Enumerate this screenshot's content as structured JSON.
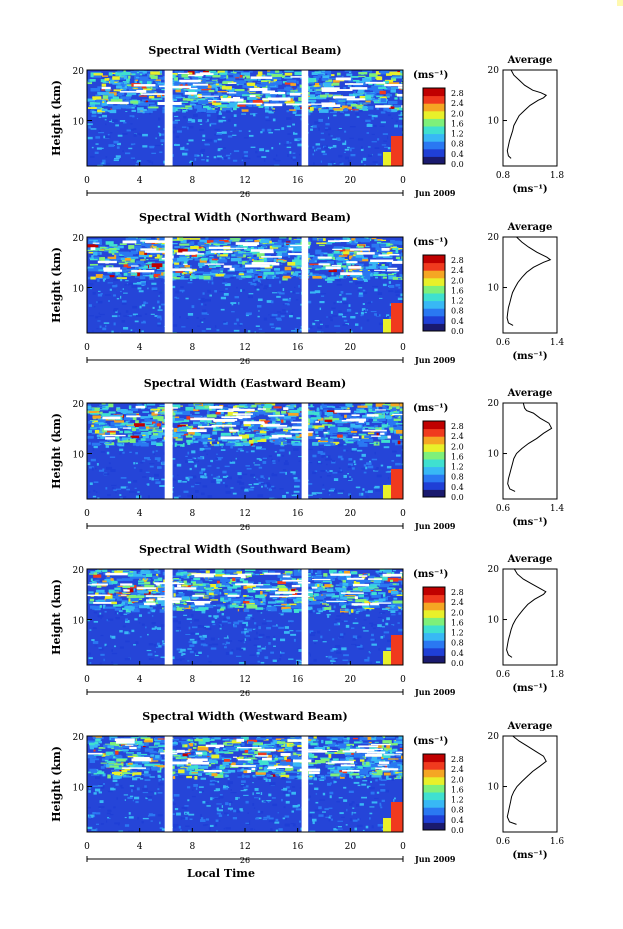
{
  "chart_data": [
    {
      "type": "heatmap",
      "title": "Spectral Width (Vertical Beam)",
      "ylabel": "Height (km)",
      "y_ticks": [
        "20",
        "10"
      ],
      "x_ticks": [
        "0",
        "4",
        "8",
        "12",
        "16",
        "20",
        "0"
      ],
      "xlim": [
        0,
        24
      ],
      "ylim": [
        1,
        20
      ],
      "date_marker": "26",
      "date_label": "Jun 2009",
      "colorbar": {
        "unit": "(ms⁻¹)",
        "ticks": [
          "2.8",
          "2.4",
          "2.0",
          "1.6",
          "1.2",
          "0.8",
          "0.4",
          "0.0"
        ],
        "range": [
          0,
          3.0
        ],
        "colors": [
          "#1a1a6e",
          "#1f3fd6",
          "#2a78f2",
          "#38b8f5",
          "#3fe0d0",
          "#7ef07a",
          "#e8f02a",
          "#f5a623",
          "#f03a1e",
          "#c00000"
        ]
      },
      "data_gaps_hours": [
        [
          5.9,
          6.5
        ],
        [
          16.3,
          16.8
        ]
      ],
      "average_profile": {
        "title": "Average",
        "xticks": [
          "0.8",
          "1.8"
        ],
        "xlim": [
          0.8,
          1.8
        ],
        "xlabel": "(ms⁻¹)",
        "yticks": [
          "20",
          "10"
        ],
        "height_km": [
          2.5,
          3,
          4,
          5,
          6,
          7,
          8,
          9,
          10,
          11,
          12,
          13,
          14,
          14.5,
          15,
          15.5,
          16,
          17,
          18,
          19,
          20
        ],
        "width_ms": [
          0.95,
          0.9,
          0.88,
          0.9,
          0.92,
          0.95,
          0.98,
          1.0,
          1.05,
          1.1,
          1.2,
          1.3,
          1.45,
          1.55,
          1.6,
          1.5,
          1.35,
          1.2,
          1.1,
          1.0,
          0.95
        ]
      }
    },
    {
      "type": "heatmap",
      "title": "Spectral Width (Northward Beam)",
      "ylabel": "Height (km)",
      "y_ticks": [
        "20",
        "10"
      ],
      "x_ticks": [
        "0",
        "4",
        "8",
        "12",
        "16",
        "20",
        "0"
      ],
      "xlim": [
        0,
        24
      ],
      "ylim": [
        1,
        20
      ],
      "date_marker": "26",
      "date_label": "Jun 2009",
      "colorbar": {
        "unit": "(ms⁻¹)",
        "ticks": [
          "2.8",
          "2.4",
          "2.0",
          "1.6",
          "1.2",
          "0.8",
          "0.4",
          "0.0"
        ],
        "range": [
          0,
          3.0
        ],
        "colors": [
          "#1a1a6e",
          "#1f3fd6",
          "#2a78f2",
          "#38b8f5",
          "#3fe0d0",
          "#7ef07a",
          "#e8f02a",
          "#f5a623",
          "#f03a1e",
          "#c00000"
        ]
      },
      "data_gaps_hours": [
        [
          5.9,
          6.5
        ],
        [
          16.3,
          16.8
        ]
      ],
      "average_profile": {
        "title": "Average",
        "xticks": [
          "0.6",
          "1.4"
        ],
        "xlim": [
          0.6,
          1.4
        ],
        "xlabel": "(ms⁻¹)",
        "yticks": [
          "20",
          "10"
        ],
        "height_km": [
          2.5,
          3,
          4,
          5,
          6,
          7,
          8,
          9,
          10,
          11,
          12,
          13,
          14,
          15,
          15.5,
          16,
          17,
          18,
          19,
          20
        ],
        "width_ms": [
          0.75,
          0.68,
          0.66,
          0.67,
          0.68,
          0.7,
          0.72,
          0.74,
          0.78,
          0.82,
          0.88,
          0.95,
          1.05,
          1.2,
          1.3,
          1.25,
          1.1,
          0.98,
          0.88,
          0.8
        ]
      }
    },
    {
      "type": "heatmap",
      "title": "Spectral Width (Eastward Beam)",
      "ylabel": "Height (km)",
      "y_ticks": [
        "20",
        "10"
      ],
      "x_ticks": [
        "0",
        "4",
        "8",
        "12",
        "16",
        "20",
        "0"
      ],
      "xlim": [
        0,
        24
      ],
      "ylim": [
        1,
        20
      ],
      "date_marker": "26",
      "date_label": "Jun 2009",
      "colorbar": {
        "unit": "(ms⁻¹)",
        "ticks": [
          "2.8",
          "2.4",
          "2.0",
          "1.6",
          "1.2",
          "0.8",
          "0.4",
          "0.0"
        ],
        "range": [
          0,
          3.0
        ],
        "colors": [
          "#1a1a6e",
          "#1f3fd6",
          "#2a78f2",
          "#38b8f5",
          "#3fe0d0",
          "#7ef07a",
          "#e8f02a",
          "#f5a623",
          "#f03a1e",
          "#c00000"
        ]
      },
      "data_gaps_hours": [
        [
          5.9,
          6.5
        ],
        [
          16.3,
          16.8
        ]
      ],
      "average_profile": {
        "title": "Average",
        "xticks": [
          "0.6",
          "1.4"
        ],
        "xlim": [
          0.6,
          1.4
        ],
        "xlabel": "(ms⁻¹)",
        "yticks": [
          "20",
          "10"
        ],
        "height_km": [
          2.5,
          3,
          4,
          5,
          6,
          7,
          8,
          9,
          10,
          11,
          12,
          13,
          14,
          15,
          16,
          17,
          18,
          18.5,
          19,
          20
        ],
        "width_ms": [
          0.78,
          0.7,
          0.67,
          0.68,
          0.7,
          0.72,
          0.74,
          0.76,
          0.8,
          0.88,
          0.98,
          1.1,
          1.2,
          1.32,
          1.28,
          1.15,
          1.05,
          0.95,
          0.92,
          0.9
        ]
      }
    },
    {
      "type": "heatmap",
      "title": "Spectral Width (Southward Beam)",
      "ylabel": "Height (km)",
      "y_ticks": [
        "20",
        "10"
      ],
      "x_ticks": [
        "0",
        "4",
        "8",
        "12",
        "16",
        "20",
        "0"
      ],
      "xlim": [
        0,
        24
      ],
      "ylim": [
        1,
        20
      ],
      "date_marker": "26",
      "date_label": "Jun 2009",
      "colorbar": {
        "unit": "(ms⁻¹)",
        "ticks": [
          "2.8",
          "2.4",
          "2.0",
          "1.6",
          "1.2",
          "0.8",
          "0.4",
          "0.0"
        ],
        "range": [
          0,
          3.0
        ],
        "colors": [
          "#1a1a6e",
          "#1f3fd6",
          "#2a78f2",
          "#38b8f5",
          "#3fe0d0",
          "#7ef07a",
          "#e8f02a",
          "#f5a623",
          "#f03a1e",
          "#c00000"
        ]
      },
      "data_gaps_hours": [
        [
          5.9,
          6.5
        ],
        [
          16.3,
          16.8
        ]
      ],
      "average_profile": {
        "title": "Average",
        "xticks": [
          "0.6",
          "1.8"
        ],
        "xlim": [
          0.6,
          1.8
        ],
        "xlabel": "(ms⁻¹)",
        "yticks": [
          "20",
          "10"
        ],
        "height_km": [
          2.5,
          3,
          4,
          5,
          6,
          7,
          8,
          9,
          10,
          11,
          12,
          13,
          14,
          15,
          15.5,
          16,
          17,
          18,
          19,
          20
        ],
        "width_ms": [
          0.8,
          0.72,
          0.68,
          0.7,
          0.72,
          0.75,
          0.78,
          0.82,
          0.88,
          0.96,
          1.05,
          1.15,
          1.3,
          1.5,
          1.55,
          1.45,
          1.25,
          1.05,
          0.92,
          0.85
        ]
      }
    },
    {
      "type": "heatmap",
      "title": "Spectral Width (Westward Beam)",
      "ylabel": "Height (km)",
      "y_ticks": [
        "20",
        "10"
      ],
      "x_ticks": [
        "0",
        "4",
        "8",
        "12",
        "16",
        "20",
        "0"
      ],
      "xlim": [
        0,
        24
      ],
      "ylim": [
        1,
        20
      ],
      "date_marker": "26",
      "date_label": "Jun 2009",
      "xlabel": "Local Time",
      "colorbar": {
        "unit": "(ms⁻¹)",
        "ticks": [
          "2.8",
          "2.4",
          "2.0",
          "1.6",
          "1.2",
          "0.8",
          "0.4",
          "0.0"
        ],
        "range": [
          0,
          3.0
        ],
        "colors": [
          "#1a1a6e",
          "#1f3fd6",
          "#2a78f2",
          "#38b8f5",
          "#3fe0d0",
          "#7ef07a",
          "#e8f02a",
          "#f5a623",
          "#f03a1e",
          "#c00000"
        ]
      },
      "data_gaps_hours": [
        [
          5.9,
          6.5
        ],
        [
          16.3,
          16.8
        ]
      ],
      "average_profile": {
        "title": "Average",
        "xticks": [
          "0.6",
          "1.6"
        ],
        "xlim": [
          0.6,
          1.6
        ],
        "xlabel": "(ms⁻¹)",
        "yticks": [
          "20",
          "10"
        ],
        "height_km": [
          2.5,
          3,
          4,
          5,
          6,
          7,
          8,
          9,
          10,
          11,
          12,
          13,
          14,
          15,
          16,
          17,
          18,
          19,
          20
        ],
        "width_ms": [
          0.85,
          0.72,
          0.68,
          0.7,
          0.72,
          0.74,
          0.76,
          0.8,
          0.86,
          0.95,
          1.05,
          1.15,
          1.28,
          1.4,
          1.35,
          1.2,
          1.05,
          0.9,
          0.78
        ]
      }
    }
  ]
}
